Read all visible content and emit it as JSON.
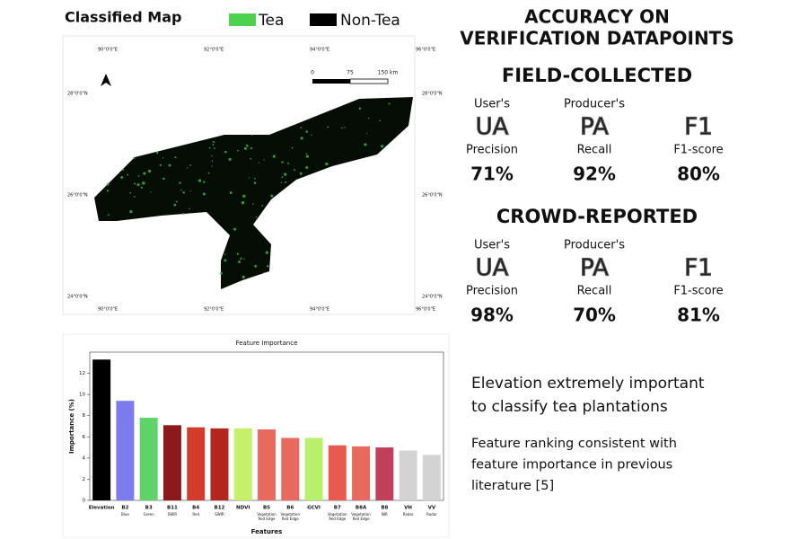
{
  "map": {
    "title": "Classified Map",
    "legend": [
      {
        "label": "Tea",
        "color": "#4cd24c"
      },
      {
        "label": "Non-Tea",
        "color": "#000000"
      }
    ],
    "lon_labels": [
      "90°0'0\"E",
      "92°0'0\"E",
      "94°0'0\"E",
      "96°0'0\"E"
    ],
    "lat_labels": [
      "28°0'0\"N",
      "26°0'0\"N",
      "24°0'0\"N"
    ],
    "scale_labels": [
      "0",
      "75",
      "150 km"
    ]
  },
  "accuracy": {
    "title_lines": [
      "ACCURACY ON",
      "VERIFICATION DATAPOINTS"
    ],
    "sections": [
      {
        "title": "FIELD-COLLECTED",
        "metrics": [
          {
            "top": "User's",
            "abbr": "UA",
            "bottom": "Precision",
            "value": "71%"
          },
          {
            "top": "Producer's",
            "abbr": "PA",
            "bottom": "Recall",
            "value": "92%"
          },
          {
            "top": null,
            "abbr": "F1",
            "bottom": "F1-score",
            "value": "80%"
          }
        ]
      },
      {
        "title": "CROWD-REPORTED",
        "metrics": [
          {
            "top": "User's",
            "abbr": "UA",
            "bottom": "Precision",
            "value": "98%"
          },
          {
            "top": "Producer's",
            "abbr": "PA",
            "bottom": "Recall",
            "value": "70%"
          },
          {
            "top": null,
            "abbr": "F1",
            "bottom": "F1-score",
            "value": "81%"
          }
        ]
      }
    ]
  },
  "notes": [
    [
      "Elevation extremely important",
      "to classify tea plantations"
    ],
    [
      "Feature ranking consistent with",
      "feature importance in previous",
      "literature [5]"
    ]
  ],
  "chart_data": {
    "type": "bar",
    "title": "Feature Importance",
    "x_label": "Features",
    "y_label": "Importance (%)",
    "categories": [
      "Elevation",
      "B2",
      "B3",
      "B11",
      "B4",
      "B12",
      "NDVI",
      "B5",
      "B6",
      "GCVI",
      "B7",
      "B8A",
      "B8",
      "VH",
      "VV"
    ],
    "sublabels": [
      null,
      "Blue",
      "Green",
      "SWIR",
      "Red",
      "SWIR",
      null,
      "Vegetation Red Edge",
      "Vegetation Red Edge",
      null,
      "Vegetation Red Edge",
      "Vegetation Red Edge",
      "NIR",
      "Radar",
      "Radar"
    ],
    "values": [
      13.3,
      9.4,
      7.8,
      7.1,
      6.9,
      6.8,
      6.8,
      6.7,
      5.9,
      5.9,
      5.2,
      5.1,
      5.0,
      4.7,
      4.3
    ],
    "colors": [
      "#000000",
      "#7b7bef",
      "#5fd36a",
      "#8b1a1a",
      "#d33b2c",
      "#b3261e",
      "#c4f06a",
      "#e8695e",
      "#e8695e",
      "#b9f06a",
      "#e85a4f",
      "#e8695e",
      "#c0405a",
      "#d3d3d3",
      "#d3d3d3"
    ],
    "ylim": [
      0,
      14
    ],
    "yticks": [
      0,
      2,
      4,
      6,
      8,
      10,
      12
    ]
  }
}
